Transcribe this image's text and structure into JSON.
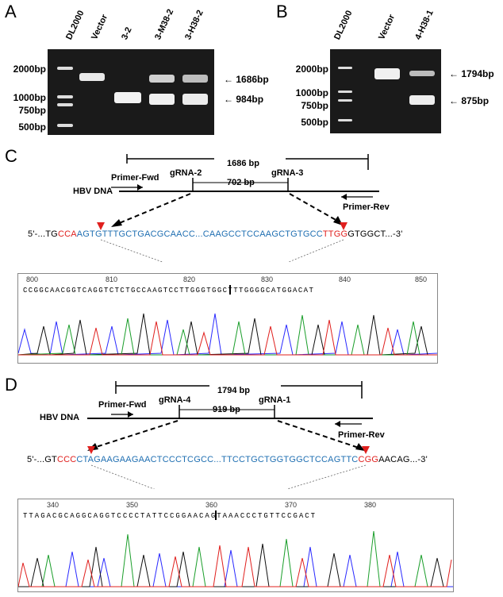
{
  "panels": {
    "A": {
      "letter": "A",
      "lanes": [
        "DL2000",
        "Vector",
        "3-2",
        "3-M38-2",
        "3-H38-2"
      ],
      "ladder": [
        "2000bp",
        "1000bp",
        "750bp",
        "500bp"
      ],
      "arrows": [
        "1686bp",
        "984bp"
      ]
    },
    "B": {
      "letter": "B",
      "lanes": [
        "DL2000",
        "Vector",
        "4-H38-1"
      ],
      "ladder": [
        "2000bp",
        "1000bp",
        "750bp",
        "500bp"
      ],
      "arrows": [
        "1794bp",
        "875bp"
      ]
    },
    "C": {
      "letter": "C",
      "size_top": "1686 bp",
      "size_mid": "702 bp",
      "primer_fwd": "Primer-Fwd",
      "primer_rev": "Primer-Rev",
      "grna_left": "gRNA-2",
      "grna_right": "gRNA-3",
      "hbv": "HBV  DNA",
      "seq": {
        "p1": "5'-...TG",
        "p2": "CCA",
        "p3": "AGTGTTTGCTGACGCAACC...CAAGCCTCCAAGCTGTGCC",
        "p4": "TTGG",
        "p5": "GTGGCT...-3'"
      },
      "axis": [
        "800",
        "810",
        "820",
        "830",
        "840",
        "850"
      ],
      "bases": "CCGGCAACGGTCAGGTCTCTGCCAAGTCCTTGGGTGGCTTTGGGGCATGGACAT"
    },
    "D": {
      "letter": "D",
      "size_top": "1794 bp",
      "size_mid": "919 bp",
      "primer_fwd": "Primer-Fwd",
      "primer_rev": "Primer-Rev",
      "grna_left": "gRNA-4",
      "grna_right": "gRNA-1",
      "hbv": "HBV  DNA",
      "seq": {
        "p1": "5'-...GT",
        "p2": "CCC",
        "p3": "CTAGAAGAAGAACTCCCTCGCC...TTCCTGCTGGTGGCTCCAGTTC",
        "p4": "CGG",
        "p5": "AACAG...-3'"
      },
      "axis": [
        "340",
        "350",
        "360",
        "370",
        "380"
      ],
      "bases": "TTAGACGCAGGCAGGTCCCCTATTCCGGAACAGTAAACCCTGTTCCGACT"
    }
  }
}
